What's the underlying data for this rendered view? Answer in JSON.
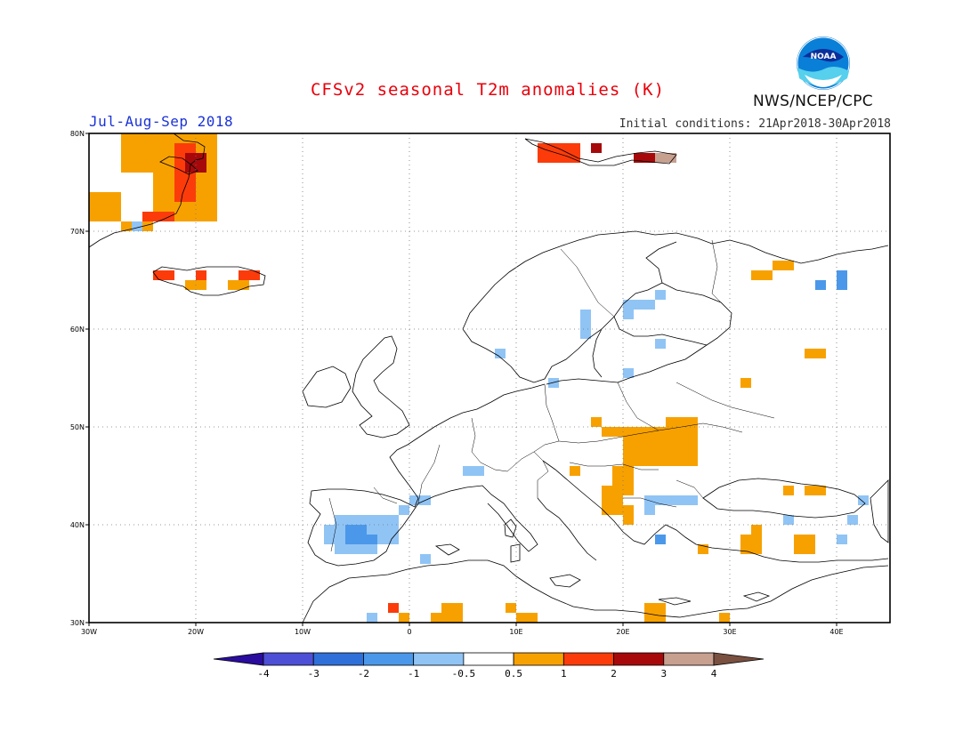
{
  "header": {
    "title": "CFSv2 seasonal T2m anomalies (K)",
    "period": "Jul-Aug-Sep 2018",
    "initial_conditions": "Initial conditions: 21Apr2018-30Apr2018",
    "agency": "NWS/NCEP/CPC",
    "logo_text": "NOAA"
  },
  "map": {
    "lon_range": [
      -30,
      45
    ],
    "lat_range": [
      30,
      80
    ],
    "lon_ticks": [
      {
        "value": -30,
        "label": "30W"
      },
      {
        "value": -20,
        "label": "20W"
      },
      {
        "value": -10,
        "label": "10W"
      },
      {
        "value": 0,
        "label": "0"
      },
      {
        "value": 10,
        "label": "10E"
      },
      {
        "value": 20,
        "label": "20E"
      },
      {
        "value": 30,
        "label": "30E"
      },
      {
        "value": 40,
        "label": "40E"
      }
    ],
    "lat_ticks": [
      {
        "value": 30,
        "label": "30N"
      },
      {
        "value": 40,
        "label": "40N"
      },
      {
        "value": 50,
        "label": "50N"
      },
      {
        "value": 60,
        "label": "60N"
      },
      {
        "value": 70,
        "label": "70N"
      },
      {
        "value": 80,
        "label": "80N"
      }
    ],
    "grid": "dotted"
  },
  "colorbar": {
    "boundaries": [
      "-4",
      "-3",
      "-2",
      "-1",
      "-0.5",
      "0.5",
      "1",
      "2",
      "3",
      "4"
    ],
    "colors": [
      "#2a0d9e",
      "#4d4fd6",
      "#2f6fd9",
      "#4b98ea",
      "#90c4f5",
      "#ffffff",
      "#f7a100",
      "#fb3c0a",
      "#a7090a",
      "#c8a090",
      "#7a5040"
    ]
  },
  "colors": {
    "warm_05_1": "#f7a100",
    "warm_1_2": "#fb3c0a",
    "warm_2_3": "#a7090a",
    "warm_3_4": "#c8a090",
    "cool_05_1": "#90c4f5",
    "cool_1_2": "#4b98ea"
  },
  "anomaly_cells": [
    {
      "lon": -27,
      "lat": 76,
      "w": 3,
      "h": 4,
      "level": "warm_05_1"
    },
    {
      "lon": -24,
      "lat": 71,
      "w": 6,
      "h": 9,
      "level": "warm_05_1"
    },
    {
      "lon": -30,
      "lat": 71,
      "w": 3,
      "h": 3,
      "level": "warm_05_1"
    },
    {
      "lon": -27,
      "lat": 70,
      "w": 3,
      "h": 1,
      "level": "warm_05_1"
    },
    {
      "lon": -22,
      "lat": 73,
      "w": 2,
      "h": 6,
      "level": "warm_1_2"
    },
    {
      "lon": -21,
      "lat": 76,
      "w": 2,
      "h": 2,
      "level": "warm_2_3"
    },
    {
      "lon": -26,
      "lat": 70,
      "w": 1,
      "h": 1,
      "level": "cool_05_1"
    },
    {
      "lon": -25,
      "lat": 71,
      "w": 3,
      "h": 1,
      "level": "warm_1_2"
    },
    {
      "lon": -24,
      "lat": 65,
      "w": 2,
      "h": 1,
      "level": "warm_1_2"
    },
    {
      "lon": -21,
      "lat": 64,
      "w": 2,
      "h": 1,
      "level": "warm_05_1"
    },
    {
      "lon": -20,
      "lat": 65,
      "w": 1,
      "h": 1,
      "level": "warm_1_2"
    },
    {
      "lon": -16,
      "lat": 65,
      "w": 2,
      "h": 1,
      "level": "warm_1_2"
    },
    {
      "lon": -17,
      "lat": 64,
      "w": 2,
      "h": 1,
      "level": "warm_05_1"
    },
    {
      "lon": 12,
      "lat": 77,
      "w": 4,
      "h": 2,
      "level": "warm_1_2"
    },
    {
      "lon": 17,
      "lat": 78,
      "w": 1,
      "h": 1,
      "level": "warm_2_3"
    },
    {
      "lon": 21,
      "lat": 77,
      "w": 2,
      "h": 1,
      "level": "warm_2_3"
    },
    {
      "lon": 23,
      "lat": 77,
      "w": 2,
      "h": 1,
      "level": "warm_3_4"
    },
    {
      "lon": 32,
      "lat": 65,
      "w": 2,
      "h": 1,
      "level": "warm_05_1"
    },
    {
      "lon": 34,
      "lat": 66,
      "w": 2,
      "h": 1,
      "level": "warm_05_1"
    },
    {
      "lon": 38,
      "lat": 64,
      "w": 1,
      "h": 1,
      "level": "cool_1_2"
    },
    {
      "lon": 40,
      "lat": 64,
      "w": 1,
      "h": 2,
      "level": "cool_1_2"
    },
    {
      "lon": 37,
      "lat": 57,
      "w": 2,
      "h": 1,
      "level": "warm_05_1"
    },
    {
      "lon": 16,
      "lat": 59,
      "w": 1,
      "h": 3,
      "level": "cool_05_1"
    },
    {
      "lon": 20,
      "lat": 61,
      "w": 1,
      "h": 2,
      "level": "cool_05_1"
    },
    {
      "lon": 21,
      "lat": 62,
      "w": 2,
      "h": 1,
      "level": "cool_05_1"
    },
    {
      "lon": 23,
      "lat": 63,
      "w": 1,
      "h": 1,
      "level": "cool_05_1"
    },
    {
      "lon": 23,
      "lat": 58,
      "w": 1,
      "h": 1,
      "level": "cool_05_1"
    },
    {
      "lon": 8,
      "lat": 57,
      "w": 1,
      "h": 1,
      "level": "cool_05_1"
    },
    {
      "lon": 13,
      "lat": 54,
      "w": 1,
      "h": 1,
      "level": "cool_05_1"
    },
    {
      "lon": 20,
      "lat": 55,
      "w": 1,
      "h": 1,
      "level": "cool_05_1"
    },
    {
      "lon": 31,
      "lat": 54,
      "w": 1,
      "h": 1,
      "level": "warm_05_1"
    },
    {
      "lon": 17,
      "lat": 50,
      "w": 1,
      "h": 1,
      "level": "warm_05_1"
    },
    {
      "lon": 18,
      "lat": 49,
      "w": 6,
      "h": 1,
      "level": "warm_05_1"
    },
    {
      "lon": 24,
      "lat": 46,
      "w": 3,
      "h": 5,
      "level": "warm_05_1"
    },
    {
      "lon": 20,
      "lat": 46,
      "w": 4,
      "h": 3,
      "level": "warm_05_1"
    },
    {
      "lon": 19,
      "lat": 43,
      "w": 2,
      "h": 3,
      "level": "warm_05_1"
    },
    {
      "lon": 18,
      "lat": 41,
      "w": 2,
      "h": 3,
      "level": "warm_05_1"
    },
    {
      "lon": 20,
      "lat": 40,
      "w": 1,
      "h": 2,
      "level": "warm_05_1"
    },
    {
      "lon": 15,
      "lat": 45,
      "w": 1,
      "h": 1,
      "level": "warm_05_1"
    },
    {
      "lon": 22,
      "lat": 42,
      "w": 5,
      "h": 1,
      "level": "cool_05_1"
    },
    {
      "lon": 22,
      "lat": 41,
      "w": 1,
      "h": 1,
      "level": "cool_05_1"
    },
    {
      "lon": 35,
      "lat": 43,
      "w": 1,
      "h": 1,
      "level": "warm_05_1"
    },
    {
      "lon": 37,
      "lat": 43,
      "w": 2,
      "h": 1,
      "level": "warm_05_1"
    },
    {
      "lon": 42,
      "lat": 42,
      "w": 1,
      "h": 1,
      "level": "cool_05_1"
    },
    {
      "lon": 35,
      "lat": 40,
      "w": 1,
      "h": 1,
      "level": "cool_05_1"
    },
    {
      "lon": 41,
      "lat": 40,
      "w": 1,
      "h": 1,
      "level": "cool_05_1"
    },
    {
      "lon": 31,
      "lat": 37,
      "w": 2,
      "h": 2,
      "level": "warm_05_1"
    },
    {
      "lon": 32,
      "lat": 39,
      "w": 1,
      "h": 1,
      "level": "warm_05_1"
    },
    {
      "lon": 36,
      "lat": 37,
      "w": 2,
      "h": 2,
      "level": "warm_05_1"
    },
    {
      "lon": 40,
      "lat": 38,
      "w": 1,
      "h": 1,
      "level": "cool_05_1"
    },
    {
      "lon": 27,
      "lat": 37,
      "w": 1,
      "h": 1,
      "level": "warm_05_1"
    },
    {
      "lon": 23,
      "lat": 38,
      "w": 1,
      "h": 1,
      "level": "cool_1_2"
    },
    {
      "lon": 5,
      "lat": 45,
      "w": 2,
      "h": 1,
      "level": "cool_05_1"
    },
    {
      "lon": 0,
      "lat": 42,
      "w": 2,
      "h": 1,
      "level": "cool_05_1"
    },
    {
      "lon": -1,
      "lat": 41,
      "w": 1,
      "h": 1,
      "level": "cool_05_1"
    },
    {
      "lon": -7,
      "lat": 37,
      "w": 4,
      "h": 4,
      "level": "cool_05_1"
    },
    {
      "lon": -3,
      "lat": 38,
      "w": 2,
      "h": 3,
      "level": "cool_05_1"
    },
    {
      "lon": -8,
      "lat": 38,
      "w": 1,
      "h": 2,
      "level": "cool_05_1"
    },
    {
      "lon": -6,
      "lat": 38,
      "w": 2,
      "h": 2,
      "level": "cool_1_2"
    },
    {
      "lon": -4,
      "lat": 38,
      "w": 1,
      "h": 1,
      "level": "cool_1_2"
    },
    {
      "lon": 1,
      "lat": 36,
      "w": 1,
      "h": 1,
      "level": "cool_05_1"
    },
    {
      "lon": -4,
      "lat": 30,
      "w": 1,
      "h": 1,
      "level": "cool_05_1"
    },
    {
      "lon": -2,
      "lat": 31,
      "w": 1,
      "h": 1,
      "level": "warm_1_2"
    },
    {
      "lon": -1,
      "lat": 30,
      "w": 1,
      "h": 1,
      "level": "warm_05_1"
    },
    {
      "lon": 2,
      "lat": 30,
      "w": 3,
      "h": 1,
      "level": "warm_05_1"
    },
    {
      "lon": 3,
      "lat": 31,
      "w": 2,
      "h": 1,
      "level": "warm_05_1"
    },
    {
      "lon": 9,
      "lat": 31,
      "w": 1,
      "h": 1,
      "level": "warm_05_1"
    },
    {
      "lon": 10,
      "lat": 30,
      "w": 2,
      "h": 1,
      "level": "warm_05_1"
    },
    {
      "lon": 22,
      "lat": 30,
      "w": 2,
      "h": 2,
      "level": "warm_05_1"
    },
    {
      "lon": 29,
      "lat": 30,
      "w": 1,
      "h": 1,
      "level": "warm_05_1"
    }
  ]
}
